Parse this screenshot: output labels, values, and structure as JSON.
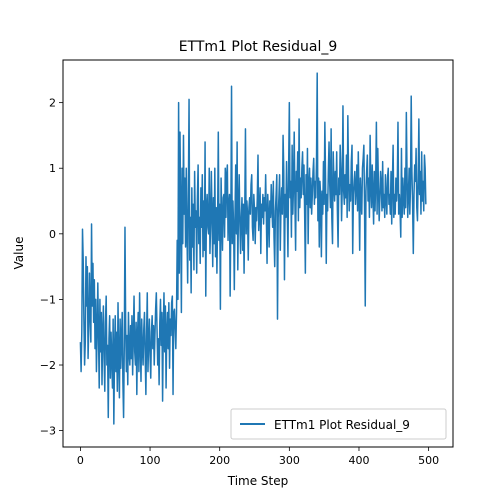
{
  "chart_data": {
    "type": "line",
    "title": "ETTm1 Plot Residual_9",
    "xlabel": "Time Step",
    "ylabel": "Value",
    "xlim": [
      -25,
      535
    ],
    "ylim": [
      -3.25,
      2.65
    ],
    "x_ticks": [
      0,
      100,
      200,
      300,
      400,
      500
    ],
    "x_tick_labels": [
      "0",
      "100",
      "200",
      "300",
      "400",
      "500"
    ],
    "y_ticks": [
      -3,
      -2,
      -1,
      0,
      1,
      2
    ],
    "y_tick_labels": [
      "−3",
      "−2",
      "−1",
      "0",
      "1",
      "2"
    ],
    "grid": false,
    "legend_position": "lower-right",
    "series": [
      {
        "name": "ETTm1 Plot Residual_9",
        "color": "#1f77b4",
        "x_start": 0,
        "x_step": 1,
        "y": [
          -1.65,
          -2.1,
          -1.5,
          0.07,
          -0.4,
          -1.3,
          -2.0,
          -1.65,
          -0.35,
          -1.1,
          -0.5,
          -1.9,
          -1.4,
          -0.6,
          -1.25,
          -1.65,
          0.15,
          -1.1,
          -0.45,
          -1.35,
          -0.7,
          -1.75,
          -1.0,
          -2.1,
          -1.5,
          -0.75,
          -1.55,
          -2.35,
          -1.0,
          -1.8,
          -1.2,
          -2.3,
          -1.5,
          -1.1,
          -1.9,
          -2.4,
          -1.35,
          -0.95,
          -2.0,
          -1.7,
          -2.8,
          -1.6,
          -1.25,
          -2.2,
          -1.5,
          -1.9,
          -2.35,
          -1.3,
          -2.9,
          -1.8,
          -1.25,
          -2.1,
          -1.5,
          -2.4,
          -1.05,
          -1.9,
          -2.5,
          -1.3,
          -2.05,
          -1.6,
          -1.2,
          -2.25,
          -2.8,
          -1.7,
          0.1,
          -1.45,
          -2.1,
          -1.55,
          -2.3,
          -1.2,
          -1.8,
          -2.0,
          -1.4,
          -1.9,
          -1.25,
          -2.15,
          -1.55,
          -0.95,
          -1.8,
          -2.0,
          -1.35,
          -2.45,
          -1.55,
          -1.2,
          -2.1,
          -0.9,
          -1.65,
          -2.25,
          -1.3,
          -1.75,
          -2.0,
          -1.45,
          -1.2,
          -1.85,
          -2.45,
          -1.55,
          -0.9,
          -2.1,
          -1.65,
          -1.3,
          -1.85,
          -2.2,
          -1.5,
          -1.25,
          -1.75,
          -1.4,
          -2.0,
          -1.55,
          -1.15,
          -0.9,
          -1.45,
          -2.0,
          -1.6,
          -2.3,
          -1.35,
          -1.0,
          -1.7,
          -1.2,
          -2.55,
          -1.45,
          -0.9,
          -1.8,
          -1.1,
          -2.35,
          -1.5,
          -1.2,
          -1.75,
          -1.05,
          -2.05,
          -1.3,
          -1.55,
          -1.05,
          -0.95,
          -2.45,
          -1.2,
          -1.15,
          -1.45,
          -1.75,
          -1.2,
          -0.1,
          -1.0,
          2.0,
          -0.6,
          1.55,
          0.4,
          -1.2,
          1.0,
          -0.15,
          1.5,
          0.3,
          0.85,
          -0.2,
          1.0,
          0.05,
          -0.75,
          0.6,
          2.05,
          -0.4,
          0.25,
          -0.9,
          0.7,
          -0.2,
          0.45,
          -0.55,
          0.95,
          0.1,
          0.35,
          -0.6,
          0.55,
          1.05,
          -0.15,
          0.25,
          -0.45,
          0.7,
          0.1,
          0.9,
          -0.35,
          0.5,
          -0.25,
          1.4,
          -0.95,
          0.4,
          0.6,
          0.1,
          0.0,
          1.0,
          -0.3,
          0.15,
          0.95,
          0.3,
          -0.5,
          0.55,
          -0.15,
          1.0,
          -0.35,
          0.4,
          -0.6,
          0.2,
          1.55,
          -0.1,
          0.45,
          -1.15,
          0.85,
          0.25,
          -0.25,
          0.55,
          0.6,
          -0.05,
          1.0,
          0.25,
          0.9,
          1.05,
          -0.1,
          0.45,
          0.6,
          -0.95,
          0.2,
          2.25,
          -0.15,
          0.5,
          0.1,
          -0.85,
          0.3,
          1.05,
          0.0,
          1.4,
          -0.55,
          0.4,
          0.9,
          0.15,
          -0.3,
          0.25,
          0.55,
          -0.25,
          0.45,
          -0.6,
          0.35,
          1.6,
          0.0,
          0.5,
          0.3,
          -0.4,
          0.4,
          0.55,
          0.3,
          0.75,
          0.9,
          0.1,
          -0.1,
          0.6,
          0.35,
          -0.15,
          0.4,
          0.2,
          0.55,
          1.2,
          0.05,
          0.3,
          0.7,
          -0.3,
          0.45,
          0.25,
          0.6,
          0.15,
          0.55,
          0.35,
          0.9,
          0.25,
          -0.45,
          0.6,
          0.3,
          -0.2,
          0.5,
          0.25,
          0.75,
          0.4,
          0.1,
          0.8,
          -0.05,
          -0.5,
          0.35,
          0.6,
          0.9,
          -1.3,
          0.25,
          0.55,
          0.9,
          -0.25,
          0.4,
          0.7,
          0.3,
          1.5,
          0.95,
          -0.7,
          0.6,
          0.25,
          1.1,
          0.4,
          -0.35,
          1.0,
          2.0,
          0.55,
          0.8,
          -0.05,
          1.35,
          0.3,
          0.75,
          1.55,
          0.5,
          -0.25,
          0.95,
          0.65,
          1.25,
          0.2,
          1.75,
          0.4,
          0.85,
          0.55,
          1.0,
          1.25,
          0.6,
          1.05,
          0.3,
          -0.6,
          0.9,
          0.45,
          1.3,
          -0.15,
          0.75,
          1.0,
          0.4,
          0.85,
          0.3,
          0.6,
          0.95,
          1.15,
          0.45,
          0.8,
          0.55,
          1.1,
          2.45,
          0.2,
          0.85,
          -0.2,
          0.8,
          0.55,
          -0.35,
          0.65,
          0.3,
          1.1,
          0.45,
          1.7,
          0.85,
          -0.45,
          0.6,
          0.35,
          0.95,
          1.4,
          0.75,
          0.4,
          1.6,
          0.25,
          -0.15,
          1.25,
          0.8,
          0.5,
          0.95,
          0.6,
          1.25,
          0.35,
          -0.2,
          0.85,
          0.6,
          1.35,
          1.0,
          0.2,
          0.75,
          1.95,
          0.65,
          0.45,
          0.9,
          0.55,
          1.2,
          0.25,
          1.8,
          0.9,
          0.35,
          0.75,
          0.5,
          1.1,
          1.35,
          -0.3,
          0.6,
          0.8,
          0.95,
          0.45,
          0.7,
          1.05,
          0.35,
          1.25,
          0.6,
          -0.25,
          0.85,
          0.5,
          0.3,
          1.0,
          1.15,
          1.35,
          0.4,
          -1.1,
          0.65,
          0.95,
          1.2,
          0.5,
          0.85,
          0.25,
          1.5,
          0.7,
          0.4,
          1.05,
          0.6,
          0.15,
          0.95,
          0.35,
          0.8,
          1.7,
          0.3,
          1.3,
          0.7,
          0.2,
          0.55,
          0.95,
          0.75,
          0.35,
          1.1,
          0.4,
          0.6,
          0.25,
          0.9,
          0.55,
          0.3,
          0.85,
          1.0,
          0.45,
          0.6,
          0.3,
          0.95,
          0.15,
          0.8,
          1.35,
          0.25,
          0.6,
          0.3,
          0.85,
          0.5,
          0.75,
          1.7,
          0.3,
          0.6,
          0.35,
          -0.05,
          1.3,
          0.25,
          0.85,
          0.55,
          0.3,
          1.0,
          0.4,
          1.85,
          0.9,
          0.25,
          0.6,
          1.0,
          0.3,
          0.75,
          2.1,
          0.95,
          0.45,
          -0.3,
          0.6,
          1.05,
          0.8,
          1.3,
          0.4,
          0.2,
          0.85,
          1.75,
          0.6,
          0.95,
          0.3,
          1.25,
          0.5,
          0.8,
          0.35,
          1.2,
          1.0,
          0.45
        ]
      }
    ]
  }
}
